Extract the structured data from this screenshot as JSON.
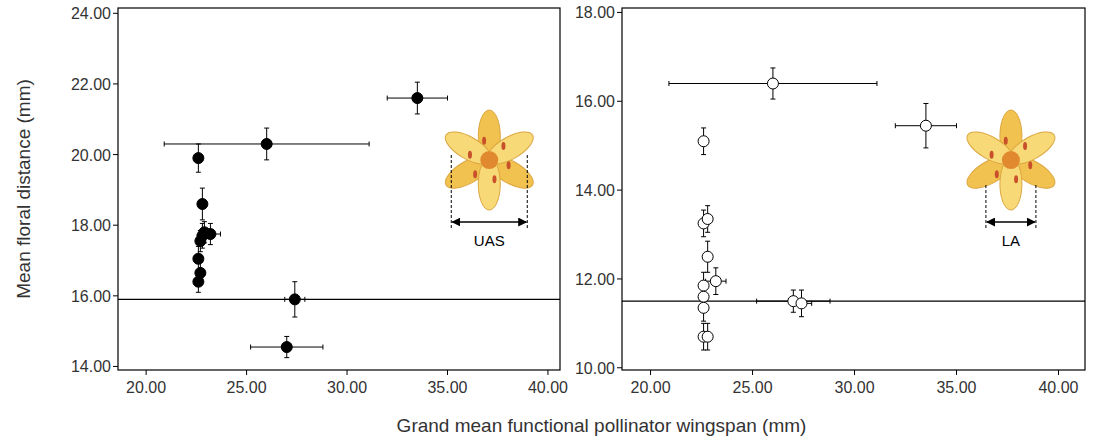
{
  "chart_data": [
    {
      "type": "scatter",
      "x_label": "Grand mean functional pollinator wingspan (mm)",
      "y_label": "Mean floral distance (mm)",
      "xlim": [
        18.6,
        40.6
      ],
      "ylim": [
        13.9,
        24.15
      ],
      "xticks": [
        {
          "value": 20,
          "label": "20.00"
        },
        {
          "value": 25,
          "label": "25.00"
        },
        {
          "value": 30,
          "label": "30.00"
        },
        {
          "value": 35,
          "label": "35.00"
        },
        {
          "value": 40,
          "label": "40.00"
        }
      ],
      "yticks": [
        {
          "value": 14,
          "label": "14.00"
        },
        {
          "value": 16,
          "label": "16.00"
        },
        {
          "value": 18,
          "label": "18.00"
        },
        {
          "value": 20,
          "label": "20.00"
        },
        {
          "value": 22,
          "label": "22.00"
        },
        {
          "value": 24,
          "label": "24.00"
        }
      ],
      "reference_line": 15.9,
      "annotation": "UAS",
      "series": [
        {
          "color": "#000000",
          "marker": "filled-circle",
          "x": [
            22.6,
            26.0,
            33.5,
            22.8,
            22.8,
            23.2,
            22.7,
            22.9,
            22.6,
            22.7,
            22.6,
            27.4,
            27.0
          ],
          "values": [
            19.9,
            20.3,
            21.6,
            18.6,
            17.7,
            17.75,
            17.55,
            17.8,
            17.05,
            16.65,
            16.4,
            15.9,
            14.55
          ],
          "x_err": [
            null,
            5.1,
            1.5,
            null,
            null,
            0.5,
            null,
            null,
            null,
            null,
            null,
            0.5,
            1.8
          ],
          "y_err": [
            0.4,
            0.45,
            0.45,
            0.45,
            0.35,
            0.3,
            0.3,
            0.3,
            0.35,
            0.3,
            0.3,
            0.5,
            0.3
          ]
        }
      ]
    },
    {
      "type": "scatter",
      "xlim": [
        18.6,
        41.3
      ],
      "ylim": [
        9.95,
        18.1
      ],
      "xticks": [
        {
          "value": 20,
          "label": "20.00"
        },
        {
          "value": 25,
          "label": "25.00"
        },
        {
          "value": 30,
          "label": "30.00"
        },
        {
          "value": 35,
          "label": "35.00"
        },
        {
          "value": 40,
          "label": "40.00"
        }
      ],
      "yticks": [
        {
          "value": 10,
          "label": "10.00"
        },
        {
          "value": 12,
          "label": "12.00"
        },
        {
          "value": 14,
          "label": "14.00"
        },
        {
          "value": 16,
          "label": "16.00"
        },
        {
          "value": 18,
          "label": "18.00"
        }
      ],
      "reference_line": 11.5,
      "annotation": "LA",
      "series": [
        {
          "color": "#000000",
          "marker": "open-circle",
          "x": [
            26.0,
            33.5,
            22.6,
            22.6,
            22.8,
            22.8,
            23.2,
            22.6,
            22.6,
            22.6,
            22.6,
            22.8,
            27.0,
            27.4
          ],
          "values": [
            16.4,
            15.45,
            15.1,
            13.25,
            13.35,
            12.5,
            11.95,
            11.85,
            11.6,
            11.35,
            10.7,
            10.7,
            11.5,
            11.45
          ],
          "x_err": [
            5.1,
            1.5,
            null,
            null,
            null,
            null,
            0.5,
            null,
            null,
            null,
            null,
            null,
            1.8,
            0.5
          ],
          "y_err": [
            0.35,
            0.5,
            0.3,
            0.3,
            0.3,
            0.35,
            0.3,
            0.3,
            0.3,
            0.3,
            0.3,
            0.3,
            0.25,
            0.3
          ]
        }
      ]
    }
  ]
}
